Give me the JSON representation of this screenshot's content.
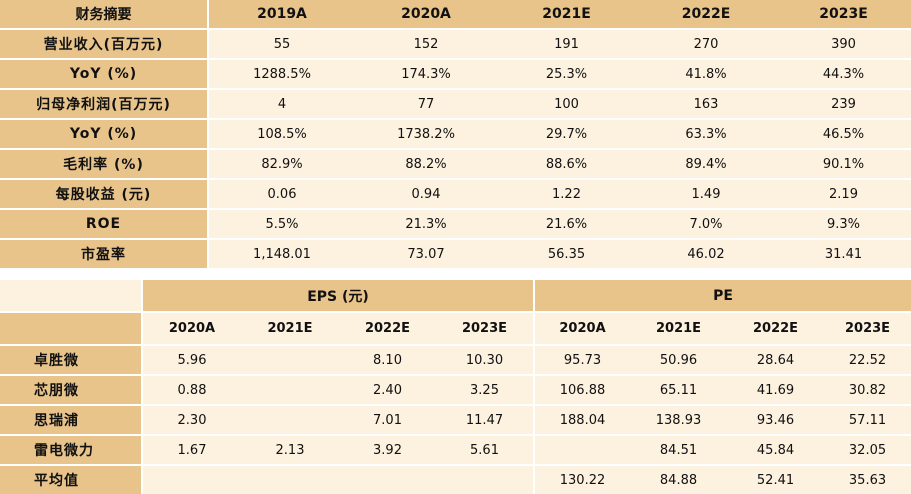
{
  "summary": {
    "header": [
      "财务摘要",
      "2019A",
      "2020A",
      "2021E",
      "2022E",
      "2023E"
    ],
    "rows": [
      {
        "label": "营业收入(百万元)",
        "values": [
          "55",
          "152",
          "191",
          "270",
          "390"
        ]
      },
      {
        "label": "YoY (%)",
        "values": [
          "1288.5%",
          "174.3%",
          "25.3%",
          "41.8%",
          "44.3%"
        ]
      },
      {
        "label": "归母净利润(百万元)",
        "values": [
          "4",
          "77",
          "100",
          "163",
          "239"
        ]
      },
      {
        "label": "YoY (%)",
        "values": [
          "108.5%",
          "1738.2%",
          "29.7%",
          "63.3%",
          "46.5%"
        ]
      },
      {
        "label": "毛利率 (%)",
        "values": [
          "82.9%",
          "88.2%",
          "88.6%",
          "89.4%",
          "90.1%"
        ]
      },
      {
        "label": "每股收益 (元)",
        "values": [
          "0.06",
          "0.94",
          "1.22",
          "1.49",
          "2.19"
        ]
      },
      {
        "label": "ROE",
        "values": [
          "5.5%",
          "21.3%",
          "21.6%",
          "7.0%",
          "9.3%"
        ]
      },
      {
        "label": "市盈率",
        "values": [
          "1,148.01",
          "73.07",
          "56.35",
          "46.02",
          "31.41"
        ]
      }
    ]
  },
  "peers": {
    "groups": [
      "EPS (元)",
      "PE"
    ],
    "years": [
      "2020A",
      "2021E",
      "2022E",
      "2023E",
      "2020A",
      "2021E",
      "2022E",
      "2023E"
    ],
    "rows": [
      {
        "label": "卓胜微",
        "values": [
          "5.96",
          "",
          "8.10",
          "10.30",
          "95.73",
          "50.96",
          "28.64",
          "22.52"
        ]
      },
      {
        "label": "芯朋微",
        "values": [
          "0.88",
          "",
          "2.40",
          "3.25",
          "106.88",
          "65.11",
          "41.69",
          "30.82"
        ]
      },
      {
        "label": "思瑞浦",
        "values": [
          "2.30",
          "",
          "7.01",
          "11.47",
          "188.04",
          "138.93",
          "93.46",
          "57.11"
        ]
      },
      {
        "label": "雷电微力",
        "values": [
          "1.67",
          "2.13",
          "3.92",
          "5.61",
          "",
          "84.51",
          "45.84",
          "32.05"
        ]
      },
      {
        "label": "平均值",
        "values": [
          "",
          "",
          "",
          "",
          "130.22",
          "84.88",
          "52.41",
          "35.63"
        ]
      }
    ]
  },
  "colors": {
    "header_bg": "#e9c48a",
    "cell_bg": "#fdf1df",
    "separator": "#ffffff"
  }
}
